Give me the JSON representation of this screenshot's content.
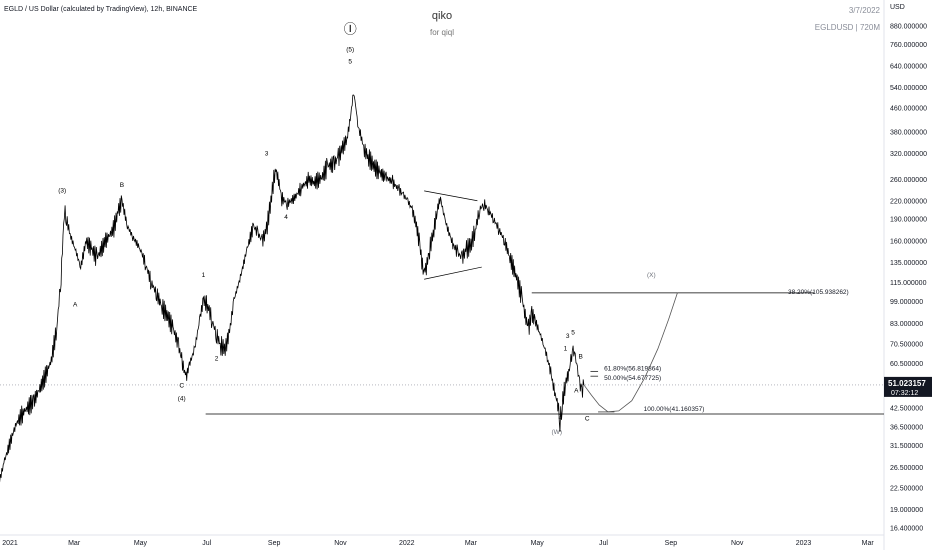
{
  "header": {
    "symbol_title": "EGLD / US Dollar (calculated by TradingView), 12h, BINANCE",
    "currency": "USD",
    "watermark_title": "qiko",
    "watermark_subtitle": "for qiql",
    "date": "3/7/2022",
    "symbol_info": "EGLDUSD | 720M"
  },
  "price_badge": {
    "value": "51.023157",
    "countdown": "07:32:12",
    "price": 51.02
  },
  "colors": {
    "background": "#ffffff",
    "line": "#000000",
    "badge": "#131722",
    "axis_text": "#131722",
    "projection": "#555555"
  },
  "chart_data": {
    "type": "line",
    "scale": "log",
    "ylim": [
      15.5,
      1000
    ],
    "x_ticks": [
      {
        "label": "2021",
        "t": 0
      },
      {
        "label": "Mar",
        "t": 59
      },
      {
        "label": "May",
        "t": 120
      },
      {
        "label": "Jul",
        "t": 181
      },
      {
        "label": "Sep",
        "t": 243
      },
      {
        "label": "Nov",
        "t": 304
      },
      {
        "label": "2022",
        "t": 365
      },
      {
        "label": "Mar",
        "t": 424
      },
      {
        "label": "May",
        "t": 485
      },
      {
        "label": "Jul",
        "t": 546
      },
      {
        "label": "Sep",
        "t": 608
      },
      {
        "label": "Nov",
        "t": 669
      },
      {
        "label": "2023",
        "t": 730
      },
      {
        "label": "Mar",
        "t": 789
      }
    ],
    "y_ticks": [
      {
        "label": "880.000000",
        "v": 880
      },
      {
        "label": "760.000000",
        "v": 760
      },
      {
        "label": "640.000000",
        "v": 640
      },
      {
        "label": "540.000000",
        "v": 540
      },
      {
        "label": "460.000000",
        "v": 460
      },
      {
        "label": "380.000000",
        "v": 380
      },
      {
        "label": "320.000000",
        "v": 320
      },
      {
        "label": "260.000000",
        "v": 260
      },
      {
        "label": "220.000000",
        "v": 220
      },
      {
        "label": "190.000000",
        "v": 190
      },
      {
        "label": "160.000000",
        "v": 160
      },
      {
        "label": "135.000000",
        "v": 135
      },
      {
        "label": "115.000000",
        "v": 115
      },
      {
        "label": "99.000000",
        "v": 99
      },
      {
        "label": "83.000000",
        "v": 83
      },
      {
        "label": "70.500000",
        "v": 70.5
      },
      {
        "label": "60.500000",
        "v": 60.5
      },
      {
        "label": "42.500000",
        "v": 42.5
      },
      {
        "label": "36.500000",
        "v": 36.5
      },
      {
        "label": "31.500000",
        "v": 31.5
      },
      {
        "label": "26.500000",
        "v": 26.5
      },
      {
        "label": "22.500000",
        "v": 22.5
      },
      {
        "label": "19.000000",
        "v": 19
      },
      {
        "label": "16.400000",
        "v": 16.4
      }
    ],
    "series": [
      {
        "values": [
          [
            -20,
            15.8
          ],
          [
            -12,
            22
          ],
          [
            -5,
            28
          ],
          [
            5,
            37
          ],
          [
            12,
            41
          ],
          [
            22,
            45
          ],
          [
            30,
            52
          ],
          [
            38,
            62
          ],
          [
            43,
            80
          ],
          [
            47,
            120
          ],
          [
            50,
            205
          ],
          [
            52,
            190
          ],
          [
            56,
            165
          ],
          [
            60,
            150
          ],
          [
            65,
            130
          ],
          [
            70,
            160
          ],
          [
            75,
            150
          ],
          [
            80,
            140
          ],
          [
            88,
            160
          ],
          [
            95,
            175
          ],
          [
            100,
            205
          ],
          [
            103,
            220
          ],
          [
            108,
            180
          ],
          [
            113,
            165
          ],
          [
            120,
            150
          ],
          [
            125,
            132
          ],
          [
            130,
            115
          ],
          [
            135,
            105
          ],
          [
            140,
            95
          ],
          [
            145,
            88
          ],
          [
            150,
            80
          ],
          [
            155,
            70
          ],
          [
            158,
            62
          ],
          [
            162,
            54
          ],
          [
            165,
            60
          ],
          [
            170,
            68
          ],
          [
            175,
            88
          ],
          [
            178,
            100
          ],
          [
            182,
            96
          ],
          [
            186,
            85
          ],
          [
            190,
            76
          ],
          [
            194,
            70
          ],
          [
            198,
            68
          ],
          [
            202,
            78
          ],
          [
            206,
            100
          ],
          [
            212,
            120
          ],
          [
            218,
            150
          ],
          [
            224,
            180
          ],
          [
            228,
            170
          ],
          [
            232,
            160
          ],
          [
            236,
            175
          ],
          [
            240,
            220
          ],
          [
            244,
            285
          ],
          [
            247,
            260
          ],
          [
            250,
            225
          ],
          [
            255,
            215
          ],
          [
            262,
            225
          ],
          [
            268,
            245
          ],
          [
            275,
            260
          ],
          [
            280,
            255
          ],
          [
            287,
            265
          ],
          [
            292,
            290
          ],
          [
            298,
            295
          ],
          [
            302,
            310
          ],
          [
            306,
            335
          ],
          [
            310,
            360
          ],
          [
            313,
            420
          ],
          [
            316,
            520
          ],
          [
            318,
            470
          ],
          [
            320,
            400
          ],
          [
            323,
            365
          ],
          [
            326,
            330
          ],
          [
            330,
            310
          ],
          [
            335,
            290
          ],
          [
            340,
            275
          ],
          [
            346,
            265
          ],
          [
            352,
            255
          ],
          [
            358,
            240
          ],
          [
            362,
            230
          ],
          [
            366,
            220
          ],
          [
            370,
            205
          ],
          [
            374,
            180
          ],
          [
            377,
            155
          ],
          [
            380,
            125
          ],
          [
            383,
            130
          ],
          [
            386,
            150
          ],
          [
            390,
            175
          ],
          [
            393,
            205
          ],
          [
            396,
            225
          ],
          [
            400,
            190
          ],
          [
            405,
            165
          ],
          [
            408,
            155
          ],
          [
            412,
            145
          ],
          [
            416,
            140
          ],
          [
            420,
            150
          ],
          [
            424,
            155
          ],
          [
            428,
            175
          ],
          [
            432,
            205
          ],
          [
            436,
            215
          ],
          [
            440,
            205
          ],
          [
            445,
            190
          ],
          [
            450,
            175
          ],
          [
            455,
            160
          ],
          [
            460,
            140
          ],
          [
            466,
            120
          ],
          [
            471,
            102
          ],
          [
            474,
            88
          ],
          [
            477,
            80
          ],
          [
            480,
            90
          ],
          [
            483,
            85
          ],
          [
            487,
            78
          ],
          [
            491,
            70
          ],
          [
            495,
            62
          ],
          [
            498,
            55
          ],
          [
            501,
            48
          ],
          [
            504,
            44
          ],
          [
            506,
            38
          ],
          [
            508,
            44
          ],
          [
            511,
            52
          ],
          [
            514,
            56
          ],
          [
            516,
            62
          ],
          [
            518,
            67
          ],
          [
            520,
            64
          ],
          [
            522,
            58
          ],
          [
            524,
            52
          ],
          [
            526,
            48
          ],
          [
            528,
            51
          ]
        ]
      }
    ],
    "projection": [
      [
        528,
        51
      ],
      [
        535,
        47
      ],
      [
        542,
        43.5
      ],
      [
        550,
        41.2
      ],
      [
        560,
        41.5
      ],
      [
        572,
        45
      ],
      [
        584,
        54
      ],
      [
        596,
        68
      ],
      [
        606,
        86
      ],
      [
        614,
        105.9
      ]
    ],
    "levels": [
      {
        "label": "38.20%(105.938262)",
        "v": 105.94,
        "t0": 480,
        "t1": 740
      },
      {
        "label": "100.00%(41.160357)",
        "v": 41.16,
        "t0": 541,
        "t1": 556
      },
      {
        "label": "61.80%(56.819864)",
        "v": 56.82,
        "t0": 534,
        "t1": 541
      },
      {
        "label": "50.00%(54.677725)",
        "v": 54.68,
        "t0": 534,
        "t1": 541
      }
    ],
    "support_line": {
      "v": 40.5,
      "t0": 180,
      "t1": 790
    },
    "triangle": [
      [
        [
          381,
          238
        ],
        [
          430,
          220
        ]
      ],
      [
        [
          381,
          118
        ],
        [
          434,
          130
        ]
      ]
    ],
    "wave_labels": [
      {
        "text": "(3)",
        "t": 48,
        "v": 235
      },
      {
        "text": "A",
        "t": 60,
        "v": 95
      },
      {
        "text": "B",
        "t": 103,
        "v": 245
      },
      {
        "text": "C",
        "t": 158,
        "v": 50
      },
      {
        "text": "(4)",
        "t": 158,
        "v": 45
      },
      {
        "text": "1",
        "t": 178,
        "v": 120
      },
      {
        "text": "2",
        "t": 190,
        "v": 62
      },
      {
        "text": "3",
        "t": 236,
        "v": 315
      },
      {
        "text": "4",
        "t": 254,
        "v": 190
      },
      {
        "text": "5",
        "t": 313,
        "v": 655
      },
      {
        "text": "(5)",
        "t": 313,
        "v": 720
      },
      {
        "text": "Ⓘ",
        "t": 313,
        "v": 830
      },
      {
        "text": "2",
        "t": 506,
        "v": 39
      },
      {
        "text": "(W)",
        "t": 503,
        "v": 34.5
      },
      {
        "text": "1",
        "t": 511,
        "v": 67
      },
      {
        "text": "3",
        "t": 513,
        "v": 74
      },
      {
        "text": "5",
        "t": 518,
        "v": 76
      },
      {
        "text": "B",
        "t": 525,
        "v": 63
      },
      {
        "text": "A",
        "t": 521,
        "v": 48
      },
      {
        "text": "C",
        "t": 531,
        "v": 38.5
      },
      {
        "text": "(X)",
        "t": 590,
        "v": 120
      }
    ]
  }
}
